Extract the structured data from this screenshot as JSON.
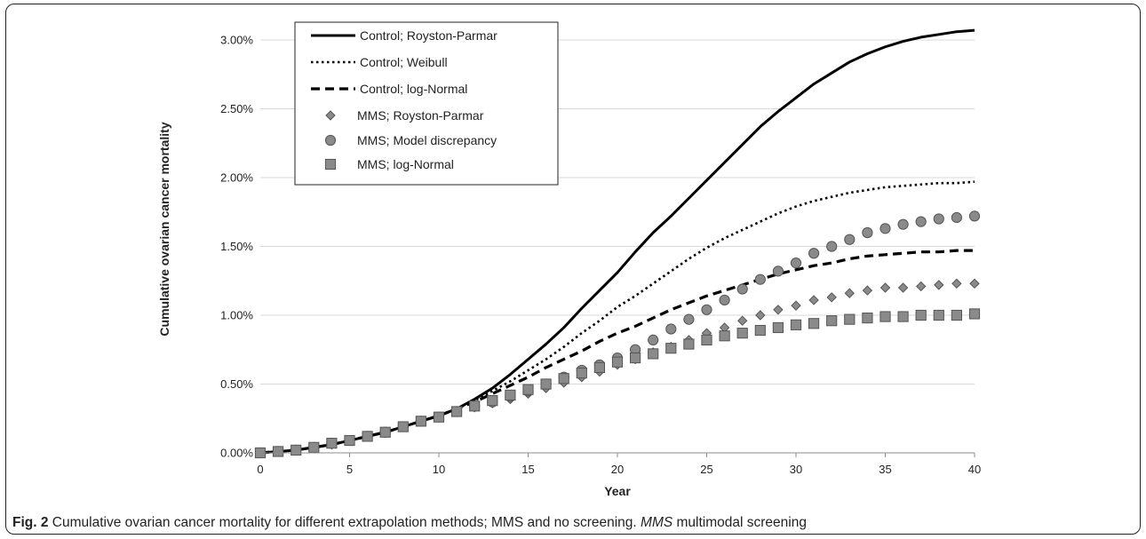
{
  "chart_data": {
    "type": "line",
    "xlabel": "Year",
    "ylabel": "Cumulative ovarian cancer mortality",
    "xlim": [
      0,
      40
    ],
    "ylim": [
      0,
      0.03
    ],
    "x_ticks": [
      "0",
      "5",
      "10",
      "15",
      "20",
      "25",
      "30",
      "35",
      "40"
    ],
    "y_ticks": [
      "0.00%",
      "0.50%",
      "1.00%",
      "1.50%",
      "2.00%",
      "2.50%",
      "3.00%"
    ],
    "grid": "horizontal",
    "legend_position": "top-left",
    "series": [
      {
        "name": "Control; Royston-Parmar",
        "style": "solid-line",
        "x": [
          0,
          1,
          2,
          3,
          4,
          5,
          6,
          7,
          8,
          9,
          10,
          11,
          12,
          13,
          14,
          15,
          16,
          17,
          18,
          19,
          20,
          21,
          22,
          23,
          24,
          25,
          26,
          27,
          28,
          29,
          30,
          31,
          32,
          33,
          34,
          35,
          36,
          37,
          38,
          39,
          40
        ],
        "values": [
          0,
          0.0001,
          0.0002,
          0.0004,
          0.0006,
          0.0009,
          0.0012,
          0.0015,
          0.0019,
          0.0023,
          0.0027,
          0.0032,
          0.0039,
          0.0047,
          0.0057,
          0.0068,
          0.0079,
          0.0091,
          0.0105,
          0.0118,
          0.0131,
          0.0146,
          0.016,
          0.0172,
          0.0185,
          0.0198,
          0.0211,
          0.0224,
          0.0237,
          0.0248,
          0.0258,
          0.0268,
          0.0276,
          0.0284,
          0.029,
          0.0295,
          0.0299,
          0.0302,
          0.0304,
          0.0306,
          0.0307
        ]
      },
      {
        "name": "Control; Weibull",
        "style": "dotted-line",
        "x": [
          0,
          1,
          2,
          3,
          4,
          5,
          6,
          7,
          8,
          9,
          10,
          11,
          12,
          13,
          14,
          15,
          16,
          17,
          18,
          19,
          20,
          21,
          22,
          23,
          24,
          25,
          26,
          27,
          28,
          29,
          30,
          31,
          32,
          33,
          34,
          35,
          36,
          37,
          38,
          39,
          40
        ],
        "values": [
          0,
          0.0001,
          0.0002,
          0.0004,
          0.0006,
          0.0009,
          0.0012,
          0.0015,
          0.0019,
          0.0023,
          0.0027,
          0.0032,
          0.0038,
          0.0045,
          0.0052,
          0.006,
          0.0068,
          0.0077,
          0.0087,
          0.0096,
          0.0106,
          0.0114,
          0.0123,
          0.0132,
          0.0141,
          0.0149,
          0.0156,
          0.0162,
          0.0168,
          0.0174,
          0.0179,
          0.0183,
          0.0186,
          0.0189,
          0.0191,
          0.0193,
          0.0194,
          0.0195,
          0.0196,
          0.0196,
          0.0197
        ]
      },
      {
        "name": "Control; log-Normal",
        "style": "dashed-line",
        "x": [
          0,
          1,
          2,
          3,
          4,
          5,
          6,
          7,
          8,
          9,
          10,
          11,
          12,
          13,
          14,
          15,
          16,
          17,
          18,
          19,
          20,
          21,
          22,
          23,
          24,
          25,
          26,
          27,
          28,
          29,
          30,
          31,
          32,
          33,
          34,
          35,
          36,
          37,
          38,
          39,
          40
        ],
        "values": [
          0,
          0.0001,
          0.0002,
          0.0004,
          0.0006,
          0.0009,
          0.0012,
          0.0015,
          0.0019,
          0.0023,
          0.0027,
          0.0032,
          0.0037,
          0.0043,
          0.0049,
          0.0055,
          0.0062,
          0.0068,
          0.0074,
          0.0081,
          0.0087,
          0.0092,
          0.0098,
          0.0104,
          0.0109,
          0.0114,
          0.0118,
          0.0122,
          0.0126,
          0.013,
          0.0133,
          0.0136,
          0.0138,
          0.0141,
          0.0143,
          0.0144,
          0.0145,
          0.0146,
          0.0146,
          0.0147,
          0.0147
        ]
      },
      {
        "name": "MMS; Royston-Parmar",
        "style": "diamond",
        "x": [
          0,
          1,
          2,
          3,
          4,
          5,
          6,
          7,
          8,
          9,
          10,
          11,
          12,
          13,
          14,
          15,
          16,
          17,
          18,
          19,
          20,
          21,
          22,
          23,
          24,
          25,
          26,
          27,
          28,
          29,
          30,
          31,
          32,
          33,
          34,
          35,
          36,
          37,
          38,
          39,
          40
        ],
        "values": [
          0,
          0.0001,
          0.0002,
          0.0004,
          0.0006,
          0.0009,
          0.0012,
          0.0015,
          0.0019,
          0.0023,
          0.0026,
          0.003,
          0.0033,
          0.0036,
          0.0039,
          0.0043,
          0.0047,
          0.0051,
          0.0055,
          0.0059,
          0.0064,
          0.0068,
          0.0073,
          0.0077,
          0.0082,
          0.0087,
          0.0091,
          0.0096,
          0.01,
          0.0104,
          0.0107,
          0.0111,
          0.0113,
          0.0116,
          0.0118,
          0.012,
          0.012,
          0.0121,
          0.0122,
          0.0123,
          0.0123
        ]
      },
      {
        "name": "MMS; Model discrepancy",
        "style": "circle",
        "x": [
          0,
          1,
          2,
          3,
          4,
          5,
          6,
          7,
          8,
          9,
          10,
          11,
          12,
          13,
          14,
          15,
          16,
          17,
          18,
          19,
          20,
          21,
          22,
          23,
          24,
          25,
          26,
          27,
          28,
          29,
          30,
          31,
          32,
          33,
          34,
          35,
          36,
          37,
          38,
          39,
          40
        ],
        "values": [
          0,
          0.0001,
          0.0002,
          0.0004,
          0.0007,
          0.0009,
          0.0012,
          0.0015,
          0.0019,
          0.0023,
          0.0026,
          0.003,
          0.0034,
          0.0037,
          0.0041,
          0.0045,
          0.005,
          0.0055,
          0.006,
          0.0064,
          0.0069,
          0.0075,
          0.0082,
          0.009,
          0.0097,
          0.0104,
          0.0111,
          0.0119,
          0.0126,
          0.0132,
          0.0138,
          0.0145,
          0.015,
          0.0155,
          0.016,
          0.0163,
          0.0166,
          0.0168,
          0.017,
          0.0171,
          0.0172
        ]
      },
      {
        "name": "MMS; log-Normal",
        "style": "square",
        "x": [
          0,
          1,
          2,
          3,
          4,
          5,
          6,
          7,
          8,
          9,
          10,
          11,
          12,
          13,
          14,
          15,
          16,
          17,
          18,
          19,
          20,
          21,
          22,
          23,
          24,
          25,
          26,
          27,
          28,
          29,
          30,
          31,
          32,
          33,
          34,
          35,
          36,
          37,
          38,
          39,
          40
        ],
        "values": [
          0,
          0.0001,
          0.0002,
          0.0004,
          0.0007,
          0.0009,
          0.0012,
          0.0015,
          0.0019,
          0.0023,
          0.0026,
          0.003,
          0.0034,
          0.0038,
          0.0042,
          0.0046,
          0.005,
          0.0054,
          0.0058,
          0.0062,
          0.0066,
          0.0069,
          0.0072,
          0.0076,
          0.0079,
          0.0082,
          0.0085,
          0.0087,
          0.0089,
          0.0091,
          0.0093,
          0.0094,
          0.0096,
          0.0097,
          0.0098,
          0.0099,
          0.0099,
          0.01,
          0.01,
          0.01,
          0.0101
        ]
      }
    ]
  },
  "caption": {
    "fig_label": "Fig. 2",
    "text": " Cumulative ovarian cancer mortality for different extrapolation methods; MMS and no screening. ",
    "abbr": "MMS",
    "abbr_text": " multimodal screening"
  },
  "colors": {
    "line": "#000000",
    "marker_fill": "#8a8a8a",
    "marker_stroke": "#555555",
    "grid": "#d9d9d9"
  }
}
